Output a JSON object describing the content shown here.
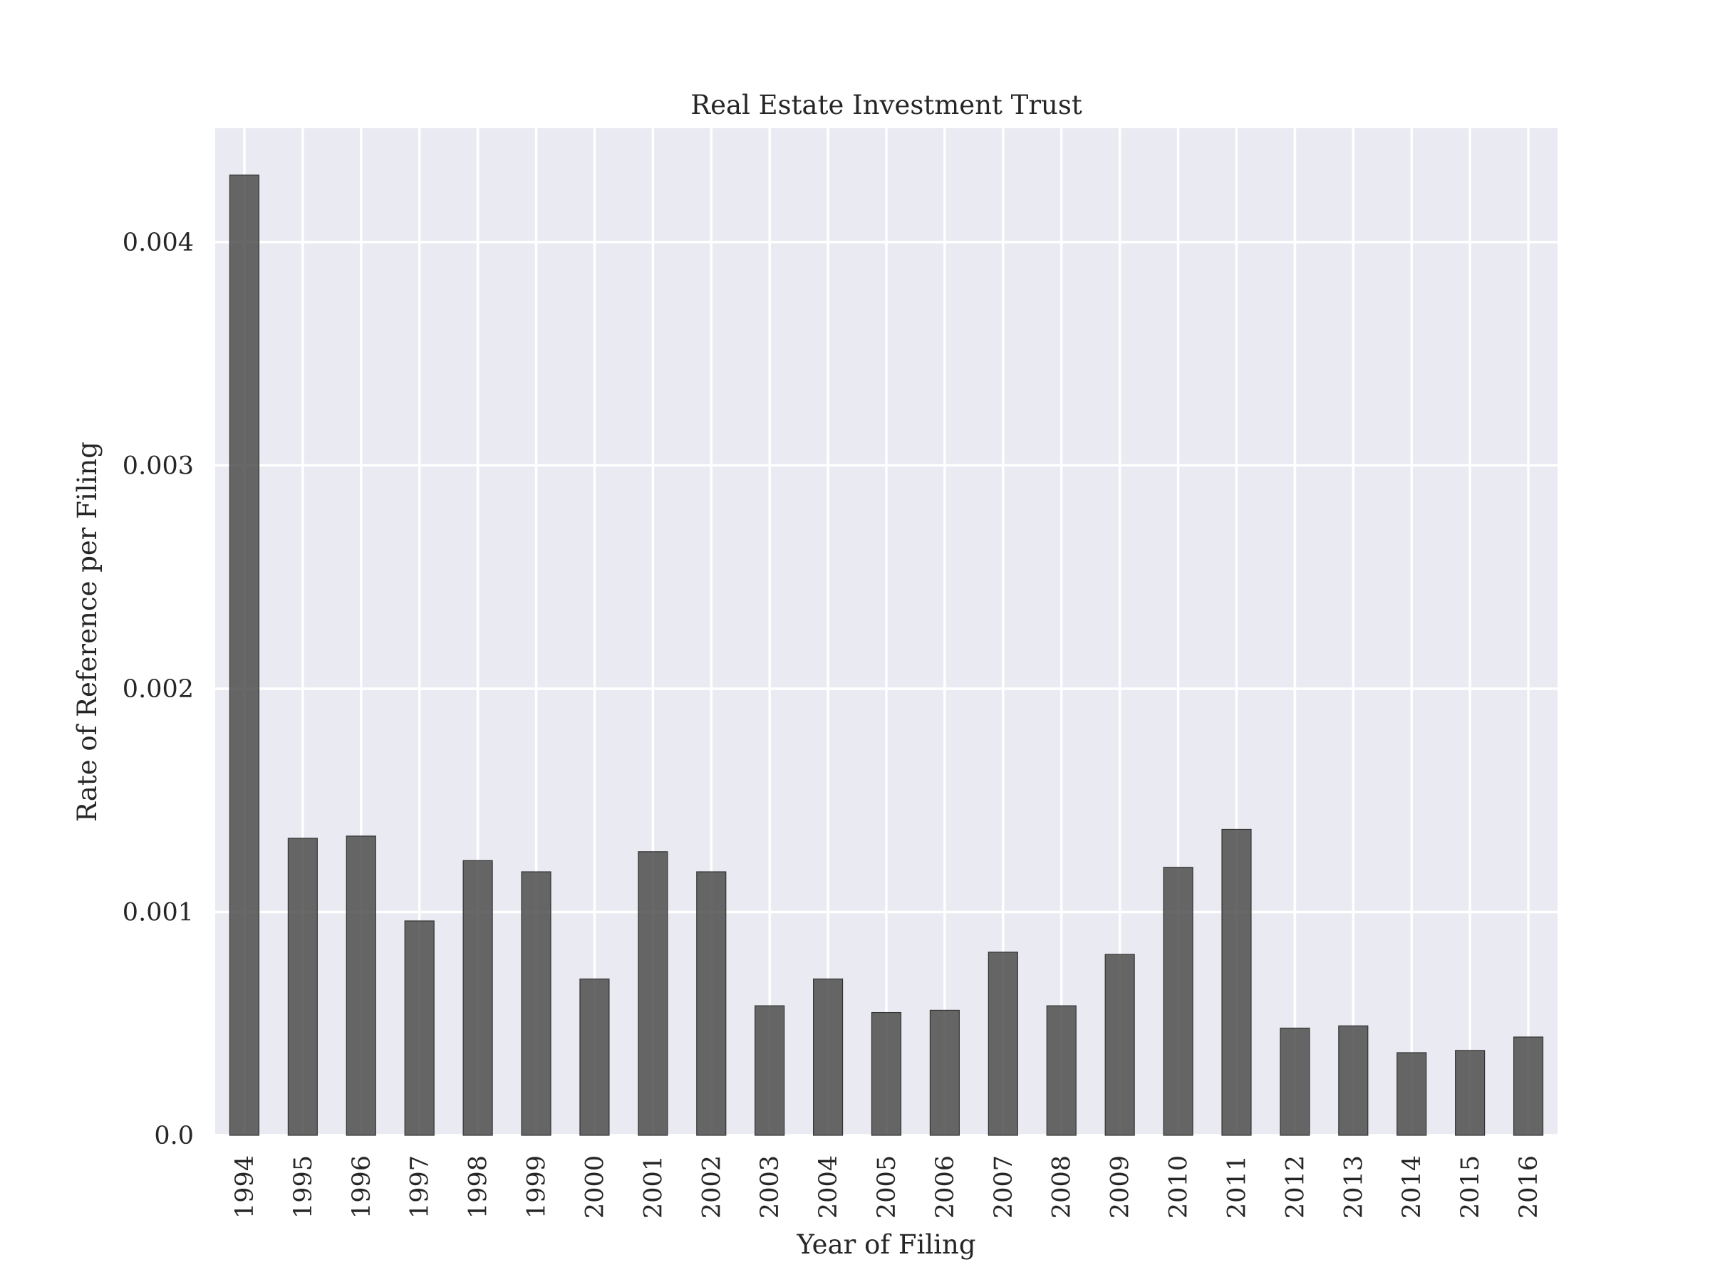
{
  "chart_data": {
    "type": "bar",
    "title": "Real Estate Investment Trust",
    "xlabel": "Year of Filing",
    "ylabel": "Rate of Reference per Filing",
    "categories": [
      "1994",
      "1995",
      "1996",
      "1997",
      "1998",
      "1999",
      "2000",
      "2001",
      "2002",
      "2003",
      "2004",
      "2005",
      "2006",
      "2007",
      "2008",
      "2009",
      "2010",
      "2011",
      "2012",
      "2013",
      "2014",
      "2015",
      "2016"
    ],
    "values": [
      0.0043,
      0.00133,
      0.00134,
      0.00096,
      0.00123,
      0.00118,
      0.0007,
      0.00127,
      0.00118,
      0.00058,
      0.0007,
      0.00055,
      0.00056,
      0.00082,
      0.00058,
      0.00081,
      0.0012,
      0.00137,
      0.00048,
      0.00049,
      0.00037,
      0.00038,
      0.00044
    ],
    "ylim": [
      0,
      0.00451
    ],
    "yticks": [
      0,
      0.001,
      0.002,
      0.003,
      0.004
    ],
    "ytick_labels": [
      "0.0",
      "0.001",
      "0.002",
      "0.003",
      "0.004"
    ],
    "grid": true,
    "bar_color": "#4d4d4d",
    "plot_background": "#eaeaf2"
  }
}
